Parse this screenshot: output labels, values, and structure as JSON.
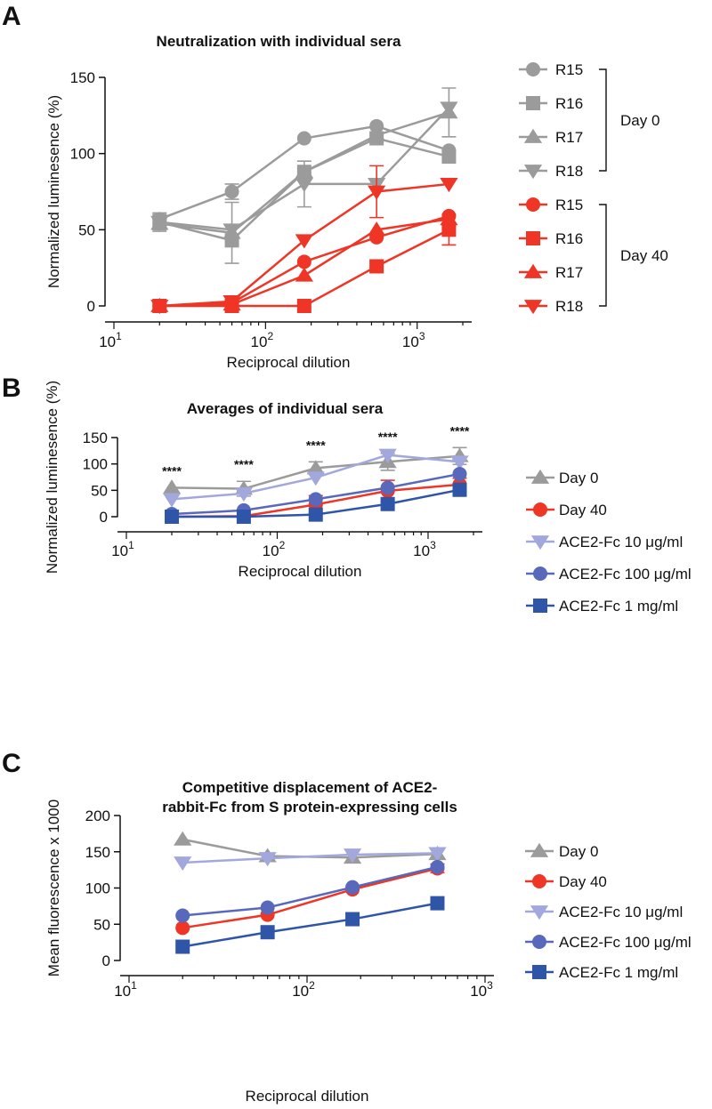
{
  "chart_data": [
    {
      "panel": "A",
      "type": "line",
      "title": "Neutralization with individual sera",
      "xlabel": "Reciprocal dilution",
      "ylabel": "Normalized luminesence (%)",
      "xscale": "log",
      "xlim": [
        10,
        2000
      ],
      "ylim": [
        0,
        150
      ],
      "yticks": [
        0,
        50,
        100,
        150
      ],
      "xticks": [
        {
          "base": "10",
          "exp": "1"
        },
        {
          "base": "10",
          "exp": "2"
        },
        {
          "base": "10",
          "exp": "3"
        }
      ],
      "x": [
        20,
        60,
        180,
        540,
        1620
      ],
      "legend_placement": "right",
      "groups": [
        {
          "label": "Day 0",
          "series": [
            0,
            1,
            2,
            3
          ]
        },
        {
          "label": "Day 40",
          "series": [
            4,
            5,
            6,
            7
          ]
        }
      ],
      "series": [
        {
          "name": "R15",
          "marker": "circle",
          "color": "#9b9b9b",
          "values": [
            57,
            75,
            110,
            118,
            102
          ],
          "err": [
            0,
            5,
            0,
            0,
            0
          ]
        },
        {
          "name": "R16",
          "marker": "square",
          "color": "#9b9b9b",
          "values": [
            55,
            43,
            88,
            110,
            98
          ],
          "err": [
            5,
            0,
            0,
            0,
            0
          ]
        },
        {
          "name": "R17",
          "marker": "triangle-up",
          "color": "#9b9b9b",
          "values": [
            54,
            48,
            88,
            112,
            127
          ],
          "err": [
            0,
            20,
            0,
            0,
            16
          ]
        },
        {
          "name": "R18",
          "marker": "triangle-down",
          "color": "#9b9b9b",
          "values": [
            55,
            50,
            80,
            80,
            130
          ],
          "err": [
            6,
            0,
            15,
            0,
            0
          ]
        },
        {
          "name": "R15",
          "marker": "circle",
          "color": "#ee3526",
          "values": [
            0,
            2,
            29,
            45,
            59
          ],
          "err": [
            0,
            0,
            0,
            0,
            0
          ]
        },
        {
          "name": "R16",
          "marker": "square",
          "color": "#ee3526",
          "values": [
            0,
            0,
            0,
            26,
            50
          ],
          "err": [
            0,
            0,
            0,
            0,
            10
          ]
        },
        {
          "name": "R17",
          "marker": "triangle-up",
          "color": "#ee3526",
          "values": [
            0,
            1,
            20,
            50,
            57
          ],
          "err": [
            0,
            0,
            0,
            0,
            0
          ]
        },
        {
          "name": "R18",
          "marker": "triangle-down",
          "color": "#ee3526",
          "values": [
            0,
            3,
            43,
            75,
            80
          ],
          "err": [
            0,
            0,
            0,
            17,
            0
          ]
        }
      ]
    },
    {
      "panel": "B",
      "type": "line",
      "title": "Averages of individual sera",
      "xlabel": "Reciprocal dilution",
      "ylabel": "Normalized luminesence (%)",
      "xscale": "log",
      "xlim": [
        10,
        2000
      ],
      "ylim": [
        0,
        150
      ],
      "yticks": [
        0,
        50,
        100,
        150
      ],
      "xticks": [
        {
          "base": "10",
          "exp": "1"
        },
        {
          "base": "10",
          "exp": "2"
        },
        {
          "base": "10",
          "exp": "3"
        }
      ],
      "x": [
        20,
        60,
        180,
        540,
        1620
      ],
      "legend_placement": "right",
      "annotations": [
        "****",
        "****",
        "****",
        "****",
        "****"
      ],
      "series": [
        {
          "name": "Day 0",
          "marker": "triangle-up",
          "color": "#9b9b9b",
          "values": [
            55,
            53,
            92,
            104,
            115
          ],
          "err": [
            0,
            14,
            12,
            16,
            16
          ]
        },
        {
          "name": "Day 40",
          "marker": "circle",
          "color": "#ee3526",
          "values": [
            0,
            1,
            23,
            49,
            61
          ],
          "err": [
            0,
            0,
            17,
            20,
            12
          ]
        },
        {
          "name": "ACE2-Fc 10 μg/ml",
          "marker": "triangle-down",
          "color": "#a3a8dc",
          "values": [
            33,
            44,
            74,
            117,
            104
          ],
          "err": [
            0,
            5,
            0,
            0,
            0
          ]
        },
        {
          "name": "ACE2-Fc 100 μg/ml",
          "marker": "circle",
          "color": "#5868bb",
          "values": [
            5,
            12,
            33,
            55,
            81
          ],
          "err": [
            0,
            0,
            0,
            0,
            0
          ]
        },
        {
          "name": "ACE2-Fc 1 mg/ml",
          "marker": "square",
          "color": "#2e55a7",
          "values": [
            0,
            0,
            4,
            24,
            51
          ],
          "err": [
            0,
            0,
            0,
            0,
            0
          ]
        }
      ]
    },
    {
      "panel": "C",
      "type": "line",
      "title": "Competitive displacement of ACE2-\nrabbit-Fc from S protein-expressing cells",
      "xlabel": "Reciprocal dilution",
      "ylabel": "Mean fluorescence x 1000",
      "xscale": "log",
      "xlim": [
        10,
        1000
      ],
      "ylim": [
        0,
        200
      ],
      "yticks": [
        0,
        50,
        100,
        150,
        200
      ],
      "xticks": [
        {
          "base": "10",
          "exp": "1"
        },
        {
          "base": "10",
          "exp": "2"
        },
        {
          "base": "10",
          "exp": "3"
        }
      ],
      "x": [
        20,
        60,
        180,
        540
      ],
      "legend_placement": "right",
      "series": [
        {
          "name": "Day 0",
          "marker": "triangle-up",
          "color": "#9b9b9b",
          "values": [
            167,
            144,
            142,
            147
          ],
          "err": [
            0,
            0,
            0,
            0
          ]
        },
        {
          "name": "Day 40",
          "marker": "circle",
          "color": "#ee3526",
          "values": [
            45,
            63,
            98,
            127
          ],
          "err": [
            0,
            0,
            0,
            6
          ]
        },
        {
          "name": "ACE2-Fc 10 μg/ml",
          "marker": "triangle-down",
          "color": "#a3a8dc",
          "values": [
            135,
            141,
            146,
            148
          ],
          "err": [
            0,
            0,
            0,
            0
          ]
        },
        {
          "name": "ACE2-Fc 100 μg/ml",
          "marker": "circle",
          "color": "#5868bb",
          "values": [
            62,
            73,
            101,
            129
          ],
          "err": [
            0,
            0,
            0,
            0
          ]
        },
        {
          "name": "ACE2-Fc 1 mg/ml",
          "marker": "square",
          "color": "#2e55a7",
          "values": [
            19,
            39,
            57,
            79
          ],
          "err": [
            0,
            0,
            0,
            0
          ]
        }
      ]
    }
  ]
}
